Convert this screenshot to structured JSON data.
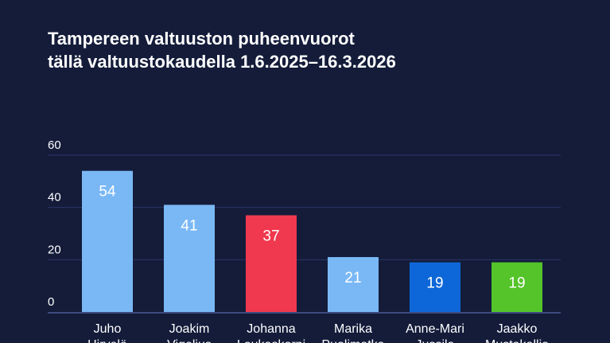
{
  "chart_data": {
    "type": "bar",
    "title_lines": [
      "Tampereen valtuuston puheenvuorot",
      "tällä valtuustokaudella 1.6.2025–16.3.2026"
    ],
    "categories": [
      [
        "Juho",
        "Hirvelä"
      ],
      [
        "Joakim",
        "Vigelius"
      ],
      [
        "Johanna",
        "Loukaskorpi"
      ],
      [
        "Marika",
        "Puolimatka"
      ],
      [
        "Anne-Mari",
        "Jussila"
      ],
      [
        "Jaakko",
        "Mustakallio"
      ]
    ],
    "values": [
      54,
      41,
      37,
      21,
      19,
      19
    ],
    "colors": [
      "#7ab8f5",
      "#7ab8f5",
      "#f0394e",
      "#7ab8f5",
      "#0e67d8",
      "#54c42a"
    ],
    "yticks": [
      0,
      20,
      40,
      60
    ],
    "ylim": [
      0,
      60
    ],
    "grid": true,
    "xlabel": "",
    "ylabel": ""
  }
}
